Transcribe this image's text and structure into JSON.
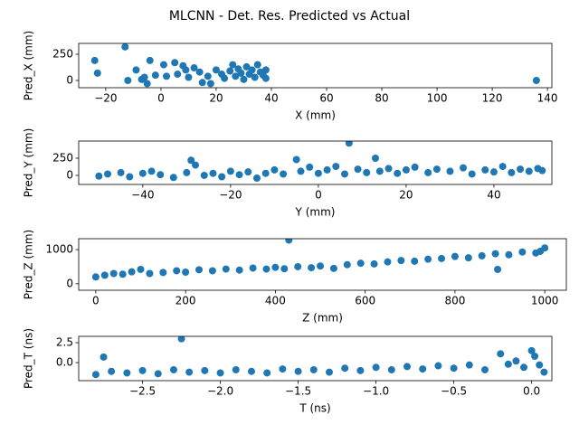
{
  "title": "MLCNN - Det. Res. Predicted vs Actual",
  "chart_data": [
    {
      "type": "scatter",
      "xlabel": "X (mm)",
      "ylabel": "Pred_X (mm)",
      "color": "#1f77b4",
      "xlim": [
        -29.8,
        141.6
      ],
      "ylim": [
        -69,
        353
      ],
      "xticks": [
        {
          "value": -20,
          "label": "−20"
        },
        0,
        20,
        40,
        60,
        80,
        100,
        120,
        140
      ],
      "yticks": [
        0,
        250
      ],
      "x": [
        -24,
        -23,
        -13,
        -12,
        -9,
        -7,
        -6,
        -5,
        -4,
        -2,
        1,
        2,
        5,
        6,
        8,
        9,
        10,
        12,
        14,
        15,
        17,
        18,
        20,
        22,
        23,
        25,
        26,
        27,
        28,
        29,
        30,
        31,
        32,
        33,
        34,
        35,
        36,
        37,
        38,
        38,
        136
      ],
      "y": [
        190,
        70,
        320,
        0,
        100,
        10,
        30,
        -30,
        190,
        50,
        150,
        40,
        170,
        60,
        140,
        100,
        30,
        120,
        80,
        -20,
        40,
        -30,
        100,
        60,
        20,
        90,
        150,
        40,
        110,
        70,
        10,
        130,
        60,
        100,
        30,
        150,
        80,
        50,
        100,
        20,
        0
      ]
    },
    {
      "type": "scatter",
      "xlabel": "Y (mm)",
      "ylabel": "Pred_Y (mm)",
      "color": "#1f77b4",
      "xlim": [
        -54.6,
        53.2
      ],
      "ylim": [
        -132,
        500
      ],
      "xticks": [
        {
          "value": -40,
          "label": "−40"
        },
        {
          "value": -20,
          "label": "−20"
        },
        0,
        20,
        40
      ],
      "yticks": [
        0,
        250
      ],
      "x": [
        -50,
        -48,
        -45,
        -43,
        -40,
        -38,
        -36,
        -33,
        -30,
        -29,
        -28,
        -26,
        -24,
        -22,
        -20,
        -18,
        -16,
        -14,
        -12,
        -10,
        -8,
        -5,
        -4,
        -2,
        0,
        2,
        4,
        6,
        7,
        9,
        11,
        13,
        14,
        16,
        18,
        20,
        22,
        25,
        27,
        30,
        33,
        35,
        38,
        40,
        42,
        44,
        46,
        48,
        50,
        51
      ],
      "y": [
        -10,
        20,
        40,
        -20,
        30,
        60,
        10,
        -30,
        40,
        220,
        150,
        0,
        30,
        -20,
        60,
        10,
        50,
        -40,
        30,
        80,
        20,
        230,
        60,
        120,
        30,
        80,
        130,
        20,
        470,
        90,
        40,
        250,
        60,
        100,
        30,
        80,
        120,
        40,
        90,
        60,
        110,
        20,
        80,
        50,
        130,
        40,
        90,
        60,
        100,
        70
      ]
    },
    {
      "type": "scatter",
      "xlabel": "Z (mm)",
      "ylabel": "Pred_Z (mm)",
      "color": "#1f77b4",
      "xlim": [
        -38,
        1048
      ],
      "ylim": [
        -190,
        1320
      ],
      "xticks": [
        0,
        200,
        400,
        600,
        800,
        1000
      ],
      "yticks": [
        0,
        1000
      ],
      "x": [
        0,
        20,
        40,
        60,
        80,
        100,
        120,
        150,
        180,
        200,
        230,
        260,
        290,
        320,
        350,
        380,
        400,
        420,
        430,
        450,
        480,
        500,
        530,
        560,
        590,
        620,
        650,
        680,
        710,
        740,
        770,
        800,
        830,
        860,
        890,
        895,
        920,
        950,
        980,
        990,
        1000
      ],
      "y": [
        200,
        250,
        300,
        280,
        350,
        420,
        300,
        330,
        380,
        340,
        410,
        380,
        430,
        400,
        460,
        430,
        480,
        440,
        1280,
        500,
        470,
        520,
        450,
        560,
        600,
        580,
        640,
        680,
        660,
        720,
        740,
        800,
        760,
        820,
        880,
        420,
        850,
        930,
        900,
        950,
        1050
      ]
    },
    {
      "type": "scatter",
      "xlabel": "T (ns)",
      "ylabel": "Pred_T (ns)",
      "color": "#1f77b4",
      "xlim": [
        -2.91,
        0.13
      ],
      "ylim": [
        -2.27,
        3.3
      ],
      "xticks": [
        {
          "value": -2.5,
          "label": "−2.5"
        },
        {
          "value": -2.0,
          "label": "−2.0"
        },
        {
          "value": -1.5,
          "label": "−1.5"
        },
        {
          "value": -1.0,
          "label": "−1.0"
        },
        {
          "value": -0.5,
          "label": "−0.5"
        },
        {
          "value": 0,
          "label": "0.0"
        }
      ],
      "yticks": [
        {
          "value": 0,
          "label": "0.0"
        },
        {
          "value": 2.5,
          "label": "2.5"
        }
      ],
      "x": [
        -2.8,
        -2.75,
        -2.7,
        -2.6,
        -2.5,
        -2.4,
        -2.3,
        -2.25,
        -2.2,
        -2.1,
        -2.0,
        -1.9,
        -1.8,
        -1.7,
        -1.6,
        -1.5,
        -1.4,
        -1.3,
        -1.2,
        -1.1,
        -1.0,
        -0.9,
        -0.8,
        -0.7,
        -0.6,
        -0.5,
        -0.4,
        -0.3,
        -0.2,
        -0.15,
        -0.1,
        -0.05,
        0.0,
        0.02,
        0.05,
        0.08
      ],
      "y": [
        -1.5,
        0.7,
        -1.1,
        -1.3,
        -1.0,
        -1.4,
        -0.9,
        3.0,
        -1.2,
        -1.0,
        -1.3,
        -0.9,
        -1.1,
        -1.3,
        -0.8,
        -1.1,
        -0.9,
        -1.2,
        -0.7,
        -1.0,
        -0.6,
        -0.9,
        -0.5,
        -0.8,
        -0.4,
        -0.7,
        -0.3,
        -0.9,
        1.1,
        -0.2,
        0.2,
        -0.6,
        1.5,
        0.8,
        -0.3,
        -1.2
      ]
    }
  ]
}
